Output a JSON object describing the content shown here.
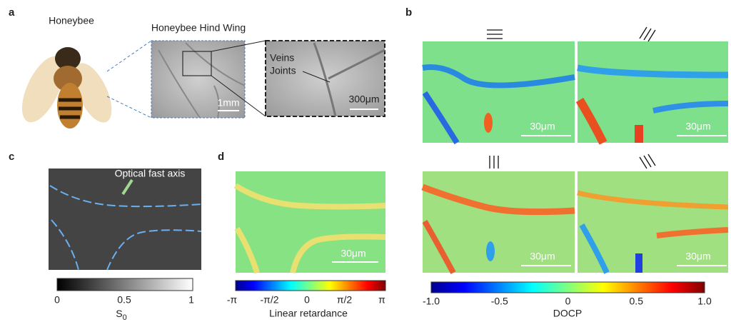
{
  "panel_a": {
    "label": "a",
    "title": "Honeybee",
    "wing_title": "Honeybee Hind Wing",
    "scale_wing": "1mm",
    "veins": "Veins",
    "joints": "Joints",
    "scale_zoom": "300μm"
  },
  "panel_b": {
    "label": "b",
    "scales": [
      "30μm",
      "30μm",
      "30μm",
      "30μm"
    ],
    "colorbar_ticks": [
      "-1.0",
      "-0.5",
      "0",
      "0.5",
      "1.0"
    ],
    "colorbar_label": "DOCP"
  },
  "panel_c": {
    "label": "c",
    "annotation": "Optical fast axis",
    "colorbar_ticks": [
      "0",
      "0.5",
      "1"
    ],
    "colorbar_label": "S",
    "colorbar_label_sub": "0"
  },
  "panel_d": {
    "label": "d",
    "scale": "30μm",
    "colorbar_ticks": [
      "-π",
      "-π/2",
      "0",
      "π/2",
      "π"
    ],
    "colorbar_label": "Linear retardance"
  }
}
